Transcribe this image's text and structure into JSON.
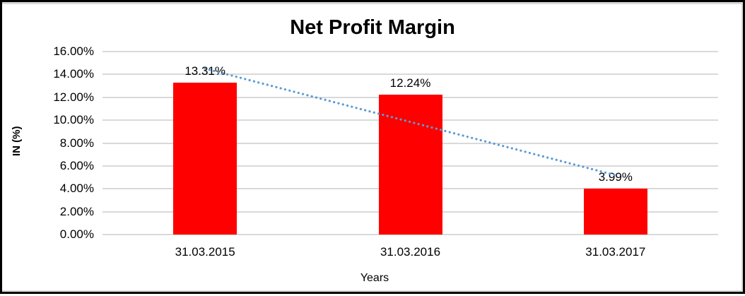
{
  "chart_data": {
    "type": "bar",
    "title": "Net Profit Margin",
    "xlabel": "Years",
    "ylabel": "IN (%)",
    "categories": [
      "31.03.2015",
      "31.03.2016",
      "31.03.2017"
    ],
    "values": [
      13.31,
      12.24,
      3.99
    ],
    "data_labels": [
      "13.31%",
      "12.24%",
      "3.99%"
    ],
    "y_ticks": [
      "16.00%",
      "14.00%",
      "12.00%",
      "10.00%",
      "8.00%",
      "6.00%",
      "4.00%",
      "2.00%",
      "0.00%"
    ],
    "ylim": [
      0,
      16
    ],
    "grid": true,
    "legend": false,
    "bar_color": "#ff0000",
    "gridline_color": "#d9d9d9",
    "text_color": "#000000",
    "trendline": {
      "type": "linear",
      "style": "dotted",
      "color": "#5b9bd5"
    }
  }
}
